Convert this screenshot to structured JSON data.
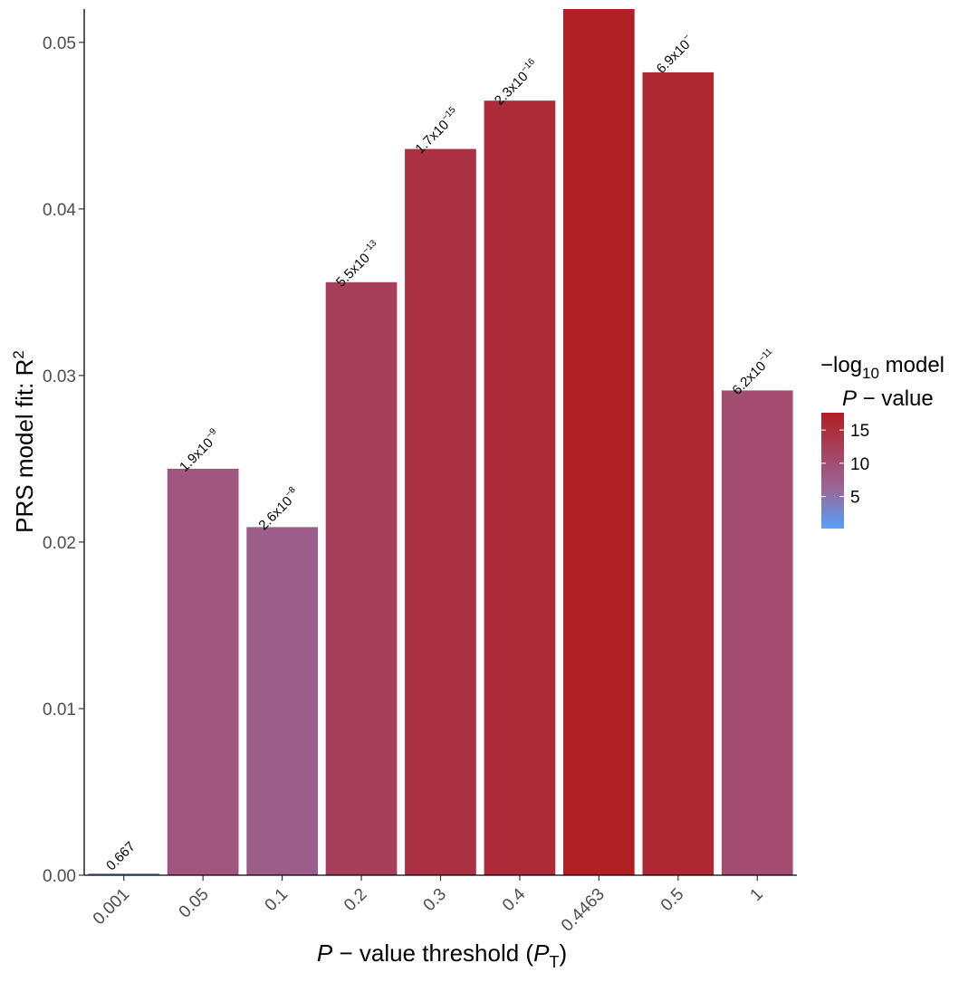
{
  "chart_data": {
    "type": "bar",
    "categories": [
      "0.001",
      "0.05",
      "0.1",
      "0.2",
      "0.3",
      "0.4",
      "0.4463",
      "0.5",
      "1"
    ],
    "values": [
      0.0001,
      0.0244,
      0.0209,
      0.0356,
      0.0436,
      0.0465,
      0.0521,
      0.0482,
      0.0291
    ],
    "neg_log10_p": [
      0.18,
      8.72,
      7.59,
      12.26,
      14.77,
      15.64,
      17.6,
      16.16,
      10.21
    ],
    "value_labels": [
      {
        "main": "0.667",
        "sup": ""
      },
      {
        "main": "1.9x10",
        "sup": "−9"
      },
      {
        "main": "2.6x10",
        "sup": "−8"
      },
      {
        "main": "5.5x10",
        "sup": "−13"
      },
      {
        "main": "1.7x10",
        "sup": "−15"
      },
      {
        "main": "2.3x10",
        "sup": "−16"
      },
      {
        "main": "",
        "sup": ""
      },
      {
        "main": "6.9x10",
        "sup": "−"
      },
      {
        "main": "6.2x10",
        "sup": "−11"
      }
    ],
    "ylabel": {
      "main": "PRS model fit:  R",
      "sup": "2"
    },
    "xlabel": {
      "italic": "P",
      "middle": " − value threshold (",
      "italic2": "P",
      "sub": "T",
      "end": ")"
    },
    "ylim": [
      0,
      0.052
    ],
    "yticks": [
      "0.00",
      "0.01",
      "0.02",
      "0.03",
      "0.04",
      "0.05"
    ],
    "ytick_values": [
      0,
      0.01,
      0.02,
      0.03,
      0.04,
      0.05
    ],
    "legend": {
      "title_line1": {
        "main": "−log",
        "sub": "10",
        "end": " model"
      },
      "title_line2": {
        "italic": "P",
        "end": " − value"
      },
      "ticks": [
        "5",
        "10",
        "15"
      ],
      "tick_values": [
        5,
        10,
        15
      ],
      "range": [
        0.18,
        17.6
      ],
      "color_low": "#56a1f9",
      "color_mid": "#9b6597",
      "color_high": "#b01f24",
      "placement": "right"
    },
    "grid": false
  }
}
